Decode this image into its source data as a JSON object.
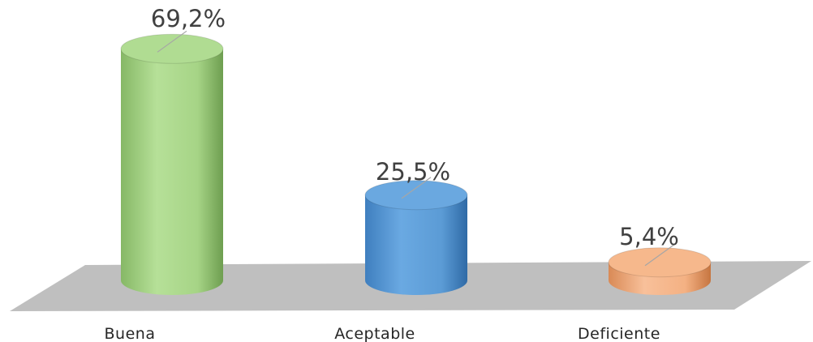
{
  "chart_data": {
    "type": "bar",
    "style": "3d-cylinder",
    "categories": [
      "Buena",
      "Aceptable",
      "Deficiente"
    ],
    "values": [
      69.2,
      25.5,
      5.4
    ],
    "value_labels": [
      "69,2%",
      "25,5%",
      "5,4%"
    ],
    "unit": "%",
    "ylim": [
      0,
      70
    ],
    "grid": false,
    "legend": "none",
    "colors": [
      "#a6d486",
      "#5b9bd5",
      "#f4b183"
    ]
  }
}
